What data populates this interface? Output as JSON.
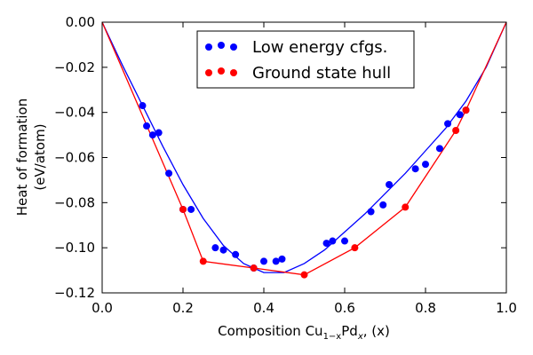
{
  "chart_data": {
    "type": "scatter",
    "xlabel": {
      "main": "Composition Cu",
      "sub1": "1−x",
      "mid": "Pd",
      "sub2": "x",
      "tail": ", (x)"
    },
    "ylabel_lines": [
      "Heat of formation",
      "(eV/atom)"
    ],
    "xlim": [
      0.0,
      1.0
    ],
    "ylim": [
      -0.12,
      0.0
    ],
    "x_ticks": [
      "0.0",
      "0.2",
      "0.4",
      "0.6",
      "0.8",
      "1.0"
    ],
    "y_ticks": [
      "0.00",
      "−0.02",
      "−0.04",
      "−0.06",
      "−0.08",
      "−0.10",
      "−0.12"
    ],
    "grid": false,
    "legend_position": "top-center",
    "series": [
      {
        "name": "Low energy cfgs.",
        "color": "#0000ff",
        "kind": "points+fit",
        "points": [
          [
            0.1,
            -0.037
          ],
          [
            0.11,
            -0.046
          ],
          [
            0.125,
            -0.05
          ],
          [
            0.14,
            -0.049
          ],
          [
            0.165,
            -0.067
          ],
          [
            0.2,
            -0.083
          ],
          [
            0.22,
            -0.083
          ],
          [
            0.28,
            -0.1
          ],
          [
            0.3,
            -0.101
          ],
          [
            0.33,
            -0.103
          ],
          [
            0.375,
            -0.109
          ],
          [
            0.4,
            -0.106
          ],
          [
            0.43,
            -0.106
          ],
          [
            0.445,
            -0.105
          ],
          [
            0.555,
            -0.098
          ],
          [
            0.57,
            -0.097
          ],
          [
            0.6,
            -0.097
          ],
          [
            0.665,
            -0.084
          ],
          [
            0.695,
            -0.081
          ],
          [
            0.71,
            -0.072
          ],
          [
            0.775,
            -0.065
          ],
          [
            0.8,
            -0.063
          ],
          [
            0.835,
            -0.056
          ],
          [
            0.855,
            -0.045
          ],
          [
            0.885,
            -0.041
          ],
          [
            0.9,
            -0.039
          ]
        ],
        "fit_curve": [
          [
            0.0,
            0.0
          ],
          [
            0.05,
            -0.019
          ],
          [
            0.1,
            -0.037
          ],
          [
            0.15,
            -0.055
          ],
          [
            0.2,
            -0.072
          ],
          [
            0.25,
            -0.087
          ],
          [
            0.3,
            -0.099
          ],
          [
            0.35,
            -0.107
          ],
          [
            0.4,
            -0.111
          ],
          [
            0.45,
            -0.111
          ],
          [
            0.5,
            -0.107
          ],
          [
            0.55,
            -0.101
          ],
          [
            0.6,
            -0.093
          ],
          [
            0.65,
            -0.085
          ],
          [
            0.7,
            -0.076
          ],
          [
            0.75,
            -0.067
          ],
          [
            0.8,
            -0.057
          ],
          [
            0.85,
            -0.047
          ],
          [
            0.9,
            -0.035
          ],
          [
            0.95,
            -0.02
          ],
          [
            1.0,
            0.0
          ]
        ]
      },
      {
        "name": "Ground state hull",
        "color": "#ff0000",
        "kind": "hull",
        "points": [
          [
            0.0,
            0.0
          ],
          [
            0.2,
            -0.083
          ],
          [
            0.25,
            -0.106
          ],
          [
            0.375,
            -0.109
          ],
          [
            0.5,
            -0.112
          ],
          [
            0.625,
            -0.1
          ],
          [
            0.75,
            -0.082
          ],
          [
            0.875,
            -0.048
          ],
          [
            0.9,
            -0.039
          ],
          [
            1.0,
            0.0
          ]
        ]
      }
    ]
  }
}
